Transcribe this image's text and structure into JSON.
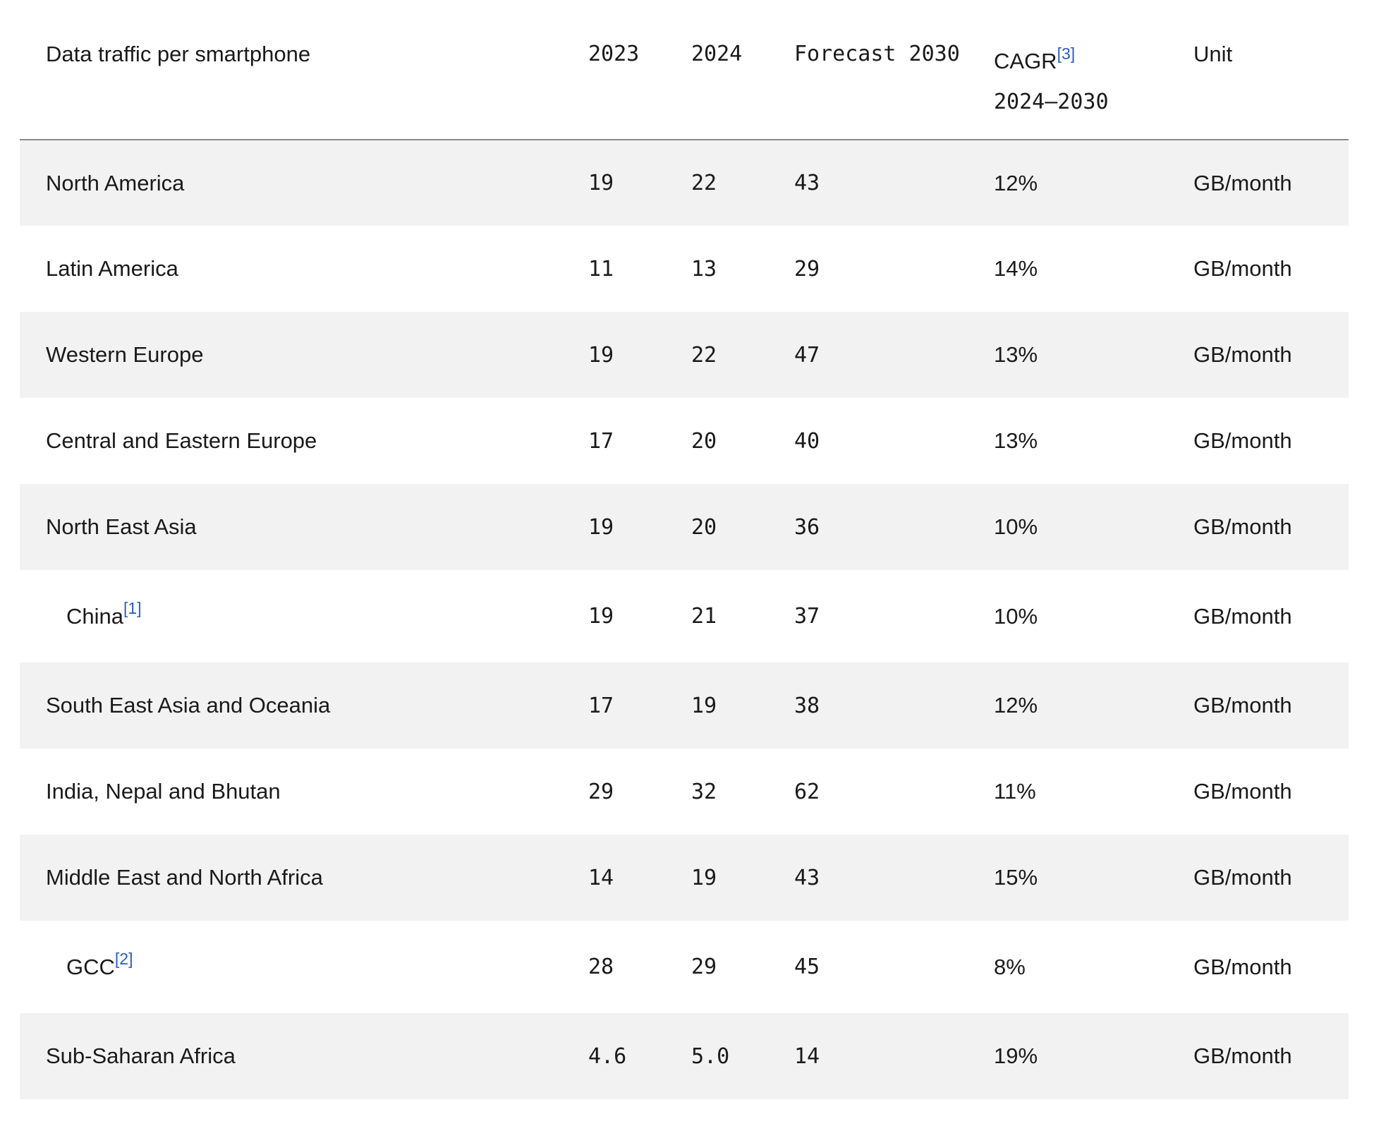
{
  "header": {
    "region": "Data traffic per smartphone",
    "y2023": "2023",
    "y2024": "2024",
    "forecast": "Forecast 2030",
    "cagr_label": "CAGR",
    "cagr_footnote": "[3]",
    "cagr_period": "2024–2030",
    "unit": "Unit"
  },
  "rows": [
    {
      "region": "North America",
      "footnote": "",
      "y2023": "19",
      "y2024": "22",
      "forecast": "43",
      "cagr": "12%",
      "unit": "GB/month"
    },
    {
      "region": "Latin America",
      "footnote": "",
      "y2023": "11",
      "y2024": "13",
      "forecast": "29",
      "cagr": "14%",
      "unit": "GB/month"
    },
    {
      "region": "Western Europe",
      "footnote": "",
      "y2023": "19",
      "y2024": "22",
      "forecast": "47",
      "cagr": "13%",
      "unit": "GB/month"
    },
    {
      "region": "Central and Eastern Europe",
      "footnote": "",
      "y2023": "17",
      "y2024": "20",
      "forecast": "40",
      "cagr": "13%",
      "unit": "GB/month"
    },
    {
      "region": "North East Asia",
      "footnote": "",
      "y2023": "19",
      "y2024": "20",
      "forecast": "36",
      "cagr": "10%",
      "unit": "GB/month"
    },
    {
      "region": "China",
      "footnote": "[1]",
      "y2023": "19",
      "y2024": "21",
      "forecast": "37",
      "cagr": "10%",
      "unit": "GB/month"
    },
    {
      "region": "South East Asia and Oceania",
      "footnote": "",
      "y2023": "17",
      "y2024": "19",
      "forecast": "38",
      "cagr": "12%",
      "unit": "GB/month"
    },
    {
      "region": "India, Nepal and Bhutan",
      "footnote": "",
      "y2023": "29",
      "y2024": "32",
      "forecast": "62",
      "cagr": "11%",
      "unit": "GB/month"
    },
    {
      "region": "Middle East and North Africa",
      "footnote": "",
      "y2023": "14",
      "y2024": "19",
      "forecast": "43",
      "cagr": "15%",
      "unit": "GB/month"
    },
    {
      "region": "GCC",
      "footnote": "[2]",
      "y2023": "28",
      "y2024": "29",
      "forecast": "45",
      "cagr": "8%",
      "unit": "GB/month"
    },
    {
      "region": "Sub-Saharan Africa",
      "footnote": "",
      "y2023": "4.6",
      "y2024": "5.0",
      "forecast": "14",
      "cagr": "19%",
      "unit": "GB/month"
    }
  ]
}
